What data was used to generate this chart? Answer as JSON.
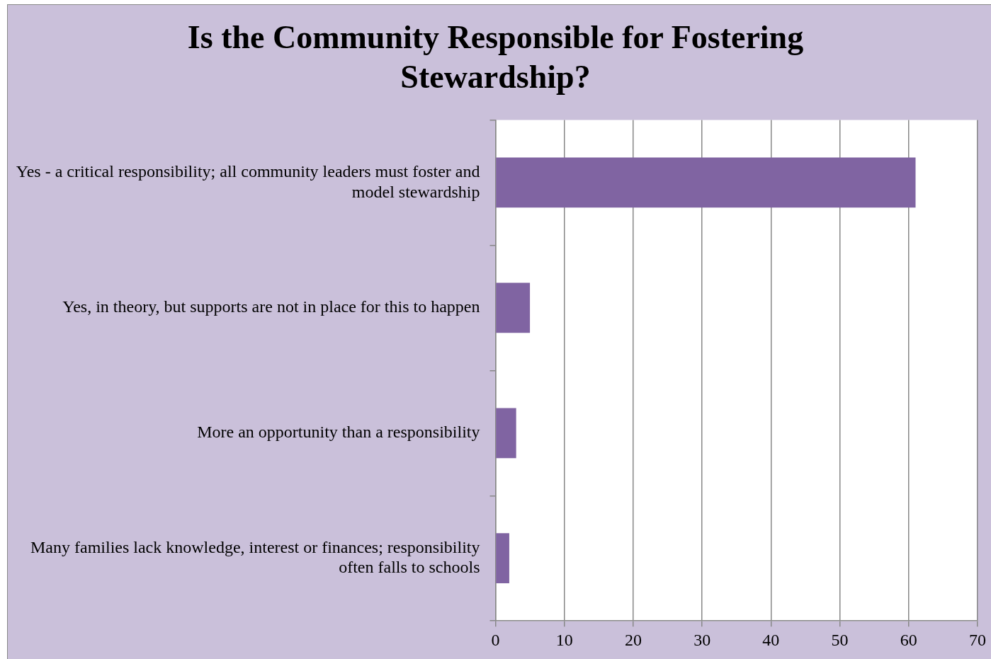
{
  "chart_data": {
    "type": "bar",
    "orientation": "horizontal",
    "title": "Is the Community Responsible for Fostering Stewardship?",
    "categories": [
      "Yes - a critical responsibility; all community leaders must foster and model stewardship",
      "Yes, in theory, but supports are not in place for this to happen",
      "More an opportunity than a responsibility",
      "Many families lack knowledge, interest or finances; responsibility often falls to schools"
    ],
    "values": [
      61,
      5,
      3,
      2
    ],
    "color": "#8064a2",
    "xlim": [
      0,
      70
    ],
    "xticks": [
      0,
      10,
      20,
      30,
      40,
      50,
      60,
      70
    ],
    "grid": "x",
    "legend": false
  }
}
